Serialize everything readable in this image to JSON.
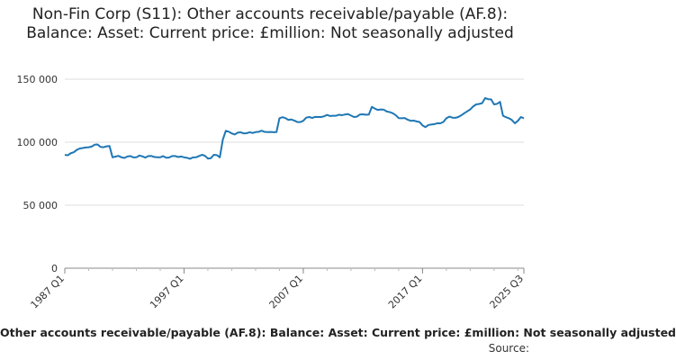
{
  "chart_data": {
    "type": "line",
    "title": "Non-Fin Corp (S11): Other accounts receivable/payable (AF.8): Balance: Asset: Current price: £million: Not seasonally adjusted",
    "x_start": "1987 Q1",
    "x_end": "2025 Q3",
    "x_tick_labels": [
      "1987 Q1",
      "1997 Q1",
      "2007 Q1",
      "2017 Q1",
      "2025 Q3"
    ],
    "y_tick_labels": [
      "0",
      "50 000",
      "100 000",
      "150 000"
    ],
    "ylim": [
      0,
      150000
    ],
    "grid": "horizontal",
    "legend": "none",
    "series_caption": "Other accounts receivable/payable (AF.8): Balance: Asset: Current price: £million: Not seasonally adjusted",
    "source_label": "Source:",
    "line_color": "#1f77b4",
    "anchors": [
      {
        "x": "1987 Q1",
        "y": 90000
      },
      {
        "x": "1987 Q4",
        "y": 92000
      },
      {
        "x": "1988 Q2",
        "y": 95000
      },
      {
        "x": "1989 Q1",
        "y": 96000
      },
      {
        "x": "1989 Q3",
        "y": 98000
      },
      {
        "x": "1990 Q2",
        "y": 96000
      },
      {
        "x": "1990 Q4",
        "y": 97000
      },
      {
        "x": "1991 Q1",
        "y": 88000
      },
      {
        "x": "1991 Q4",
        "y": 88000
      },
      {
        "x": "1992 Q3",
        "y": 89000
      },
      {
        "x": "1993 Q1",
        "y": 88000
      },
      {
        "x": "1994 Q1",
        "y": 89000
      },
      {
        "x": "1995 Q1",
        "y": 88000
      },
      {
        "x": "1996 Q1",
        "y": 89000
      },
      {
        "x": "1997 Q1",
        "y": 88000
      },
      {
        "x": "1998 Q1",
        "y": 88000
      },
      {
        "x": "1998 Q3",
        "y": 90000
      },
      {
        "x": "1999 Q1",
        "y": 87000
      },
      {
        "x": "1999 Q3",
        "y": 90000
      },
      {
        "x": "2000 Q1",
        "y": 88000
      },
      {
        "x": "2000 Q2",
        "y": 102000
      },
      {
        "x": "2000 Q3",
        "y": 109000
      },
      {
        "x": "2001 Q1",
        "y": 107000
      },
      {
        "x": "2002 Q1",
        "y": 107000
      },
      {
        "x": "2003 Q1",
        "y": 108000
      },
      {
        "x": "2004 Q1",
        "y": 108000
      },
      {
        "x": "2004 Q4",
        "y": 108000
      },
      {
        "x": "2005 Q1",
        "y": 119000
      },
      {
        "x": "2006 Q1",
        "y": 118000
      },
      {
        "x": "2006 Q3",
        "y": 116000
      },
      {
        "x": "2007 Q1",
        "y": 117000
      },
      {
        "x": "2007 Q3",
        "y": 120000
      },
      {
        "x": "2008 Q3",
        "y": 120000
      },
      {
        "x": "2009 Q3",
        "y": 121000
      },
      {
        "x": "2010 Q3",
        "y": 122000
      },
      {
        "x": "2011 Q2",
        "y": 120000
      },
      {
        "x": "2011 Q4",
        "y": 122000
      },
      {
        "x": "2012 Q3",
        "y": 122000
      },
      {
        "x": "2012 Q4",
        "y": 128000
      },
      {
        "x": "2013 Q3",
        "y": 126000
      },
      {
        "x": "2014 Q3",
        "y": 123000
      },
      {
        "x": "2015 Q2",
        "y": 119000
      },
      {
        "x": "2016 Q1",
        "y": 117000
      },
      {
        "x": "2016 Q4",
        "y": 116000
      },
      {
        "x": "2017 Q2",
        "y": 112000
      },
      {
        "x": "2017 Q4",
        "y": 114000
      },
      {
        "x": "2018 Q3",
        "y": 115000
      },
      {
        "x": "2019 Q1",
        "y": 119000
      },
      {
        "x": "2020 Q1",
        "y": 120000
      },
      {
        "x": "2020 Q3",
        "y": 123000
      },
      {
        "x": "2021 Q1",
        "y": 126000
      },
      {
        "x": "2021 Q3",
        "y": 130000
      },
      {
        "x": "2022 Q1",
        "y": 131000
      },
      {
        "x": "2022 Q2",
        "y": 135000
      },
      {
        "x": "2022 Q4",
        "y": 134000
      },
      {
        "x": "2023 Q1",
        "y": 130000
      },
      {
        "x": "2023 Q3",
        "y": 132000
      },
      {
        "x": "2023 Q4",
        "y": 121000
      },
      {
        "x": "2024 Q2",
        "y": 119000
      },
      {
        "x": "2024 Q4",
        "y": 115000
      },
      {
        "x": "2025 Q1",
        "y": 117000
      },
      {
        "x": "2025 Q2",
        "y": 120000
      },
      {
        "x": "2025 Q3",
        "y": 119000
      }
    ]
  }
}
